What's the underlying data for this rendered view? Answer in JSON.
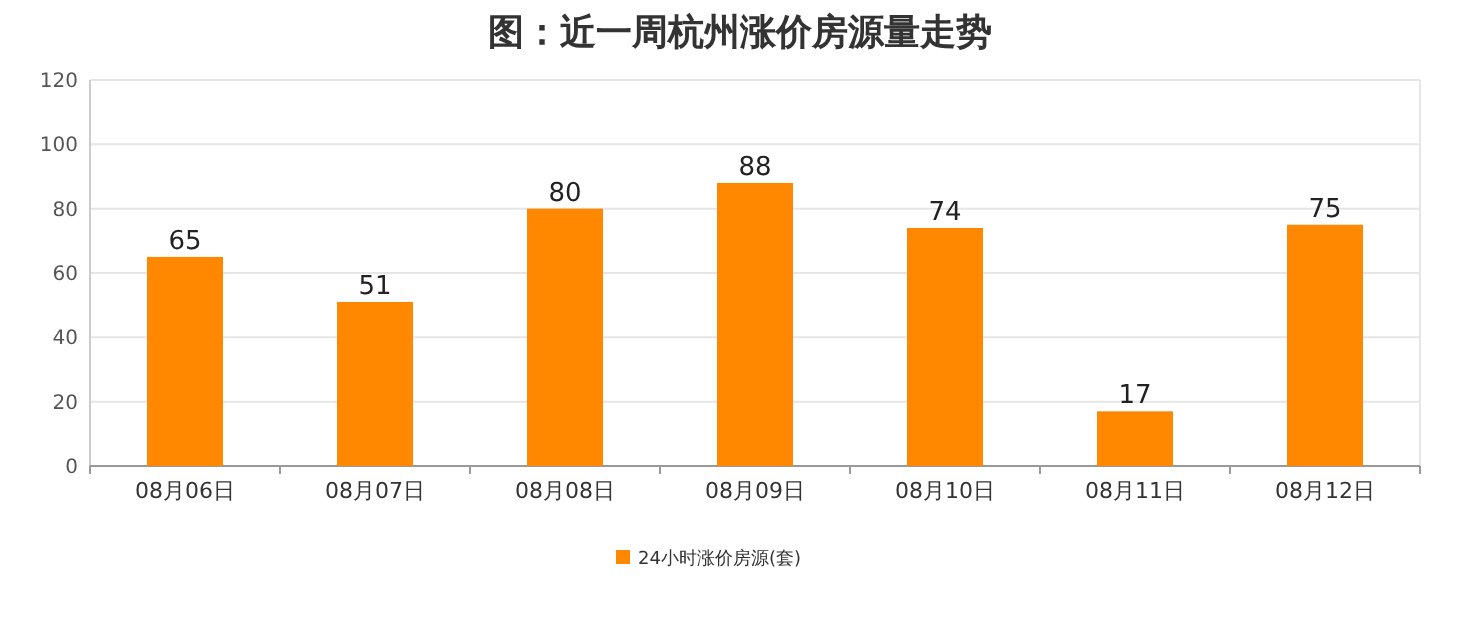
{
  "chart_data": {
    "type": "bar",
    "title": "图：近一周杭州涨价房源量走势",
    "categories": [
      "08月06日",
      "08月07日",
      "08月08日",
      "08月09日",
      "08月10日",
      "08月11日",
      "08月12日"
    ],
    "series": [
      {
        "name": "24小时涨价房源(套)",
        "color": "#ff8800",
        "values": [
          65,
          51,
          80,
          88,
          74,
          17,
          75
        ]
      }
    ],
    "ylim": [
      0,
      120
    ],
    "yticks": [
      0,
      20,
      40,
      60,
      80,
      100,
      120
    ],
    "grid": "y",
    "legend": "bottom",
    "data_labels": true
  }
}
